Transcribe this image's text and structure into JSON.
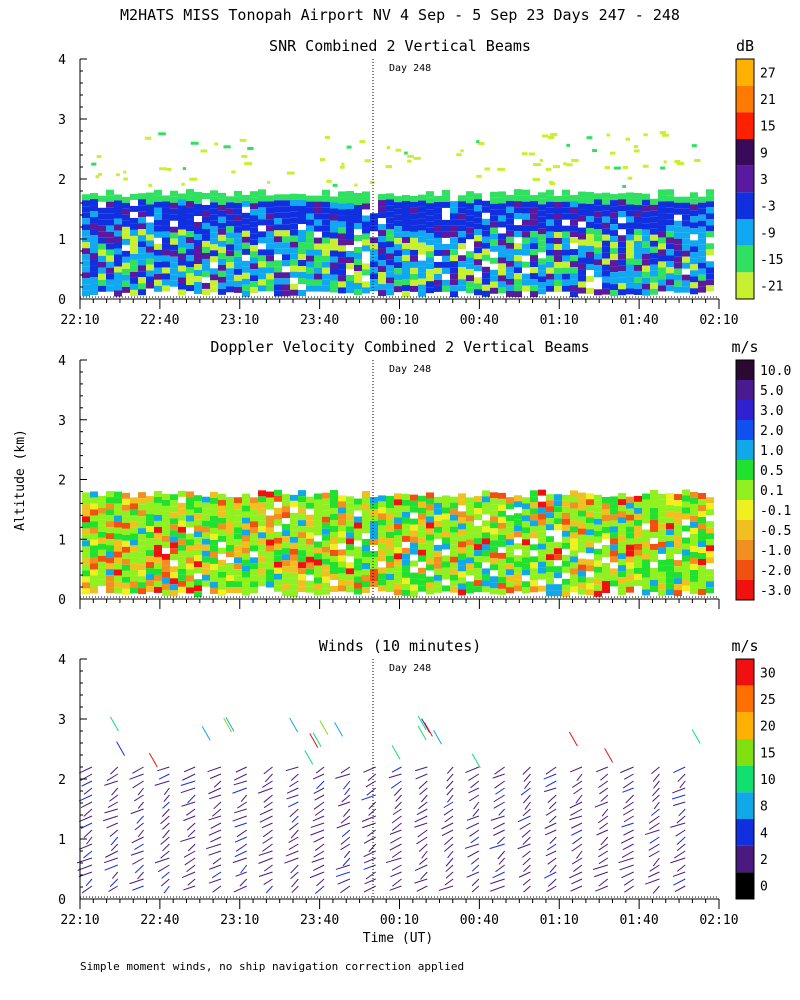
{
  "figure": {
    "title": "M2HATS MISS Tonopah Airport NV   4 Sep -  5 Sep 23 Days 247 - 248",
    "ylabel": "Altitude (km)",
    "xlabel": "Time (UT)",
    "footnote": "Simple moment winds, no ship navigation correction applied",
    "day_marker_label": "Day 248"
  },
  "chart_data": [
    {
      "type": "heatmap",
      "title": "SNR Combined 2 Vertical Beams",
      "unit": "dB",
      "x_ticks": [
        "22:10",
        "22:40",
        "23:10",
        "23:40",
        "00:10",
        "00:40",
        "01:10",
        "01:40",
        "02:10"
      ],
      "y_ticks": [
        "0",
        "1",
        "2",
        "3",
        "4"
      ],
      "ylim": [
        0,
        4
      ],
      "day_marker": "Day 248",
      "colorbar_labels": [
        "27",
        "21",
        "15",
        "9",
        "3",
        "-3",
        "-9",
        "-15",
        "-21"
      ],
      "colorbar_colors": [
        "#ffb000",
        "#ff7a00",
        "#ff2000",
        "#3a0a5a",
        "#5a1aa0",
        "#1030e0",
        "#10a8f0",
        "#30e060",
        "#c8f030"
      ],
      "data_top_km": 1.8,
      "scatter_echo_km": [
        1.9,
        2.8
      ],
      "notes": "Blue/purple layer ~1.2-1.8 km, mixed cyan/green below"
    },
    {
      "type": "heatmap",
      "title": "Doppler Velocity Combined 2 Vertical Beams",
      "unit": "m/s",
      "x_ticks": [
        "",
        "",
        "",
        "",
        "",
        "",
        "",
        "",
        ""
      ],
      "y_ticks": [
        "0",
        "1",
        "2",
        "3",
        "4"
      ],
      "ylim": [
        0,
        4
      ],
      "day_marker": "Day 248",
      "colorbar_labels": [
        "10.0",
        "5.0",
        "3.0",
        "2.0",
        "1.0",
        "0.5",
        "0.1",
        "-0.1",
        "-0.5",
        "-1.0",
        "-2.0",
        "-3.0"
      ],
      "colorbar_colors": [
        "#2a0a30",
        "#4a1a90",
        "#3020d0",
        "#1050f0",
        "#10a8e8",
        "#20e030",
        "#90f020",
        "#f0f020",
        "#f0c020",
        "#f09020",
        "#f05010",
        "#f01010"
      ],
      "data_top_km": 1.8
    },
    {
      "type": "scatter",
      "title": "Winds (10 minutes)",
      "unit": "m/s",
      "x_ticks": [
        "22:10",
        "22:40",
        "23:10",
        "23:40",
        "00:10",
        "00:40",
        "01:10",
        "01:40",
        "02:10"
      ],
      "y_ticks": [
        "0",
        "1",
        "2",
        "3",
        "4"
      ],
      "ylim": [
        0,
        4
      ],
      "day_marker": "Day 248",
      "colorbar_labels": [
        "30",
        "25",
        "20",
        "15",
        "10",
        "8",
        "4",
        "2",
        "0"
      ],
      "colorbar_colors": [
        "#f01010",
        "#ff7000",
        "#ffb000",
        "#80e010",
        "#10e070",
        "#10a8e8",
        "#1030e0",
        "#4a1a80",
        "#000000"
      ],
      "profile_times": [
        "22:10",
        "22:20",
        "22:30",
        "22:40",
        "22:50",
        "23:00",
        "23:10",
        "23:20",
        "23:30",
        "23:40",
        "23:50",
        "00:00",
        "00:10",
        "00:20",
        "00:30",
        "00:40",
        "00:50",
        "01:00",
        "01:10",
        "01:20",
        "01:30",
        "01:40",
        "01:50",
        "02:00"
      ],
      "profile_top_km": 2.2,
      "upper_barbs_km": [
        2.4,
        3.1
      ]
    }
  ]
}
